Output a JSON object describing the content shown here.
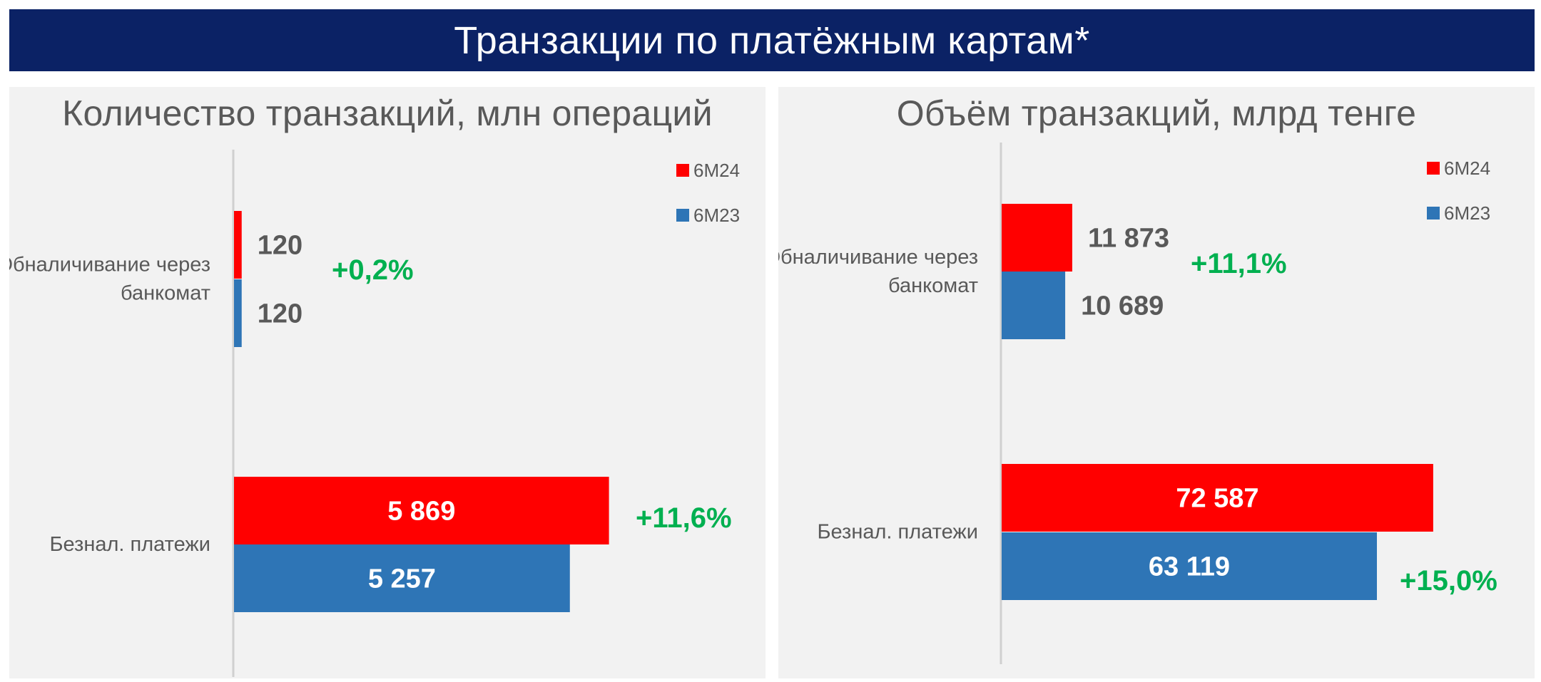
{
  "title": "Транзакции по платёжным картам*",
  "colors": {
    "series_6m24": "#ff0000",
    "series_6m23": "#2e75b6",
    "growth": "#00b050",
    "header_bg": "#0b2265",
    "panel_bg": "#f2f2f2",
    "text": "#595959"
  },
  "chart_data": [
    {
      "type": "bar",
      "orientation": "horizontal",
      "title": "Количество транзакций, млн операций",
      "categories": [
        "Обналичивание через банкомат",
        "Безнал. платежи"
      ],
      "category_lines": [
        [
          "Обналичивание через",
          "банкомат"
        ],
        [
          "Безнал. платежи"
        ]
      ],
      "series": [
        {
          "name": "6М24",
          "values": [
            120,
            5869
          ],
          "labels": [
            "120",
            "5 869"
          ]
        },
        {
          "name": "6М23",
          "values": [
            120,
            5257
          ],
          "labels": [
            "120",
            "5 257"
          ]
        }
      ],
      "growth": [
        "+0,2%",
        "+11,6%"
      ],
      "xlim": [
        0,
        6700
      ],
      "legend": "top-right"
    },
    {
      "type": "bar",
      "orientation": "horizontal",
      "title": "Объём транзакций, млрд тенге",
      "categories": [
        "Обналичивание через банкомат",
        "Безнал. платежи"
      ],
      "category_lines": [
        [
          "Обналичивание через",
          "банкомат"
        ],
        [
          "Безнал. платежи"
        ]
      ],
      "series": [
        {
          "name": "6М24",
          "values": [
            11873,
            72587
          ],
          "labels": [
            "11 873",
            "72 587"
          ]
        },
        {
          "name": "6М23",
          "values": [
            10689,
            63119
          ],
          "labels": [
            "10 689",
            "63 119"
          ]
        }
      ],
      "growth": [
        "+11,1%",
        "+15,0%"
      ],
      "xlim": [
        0,
        84000
      ],
      "legend": "top-right"
    }
  ]
}
